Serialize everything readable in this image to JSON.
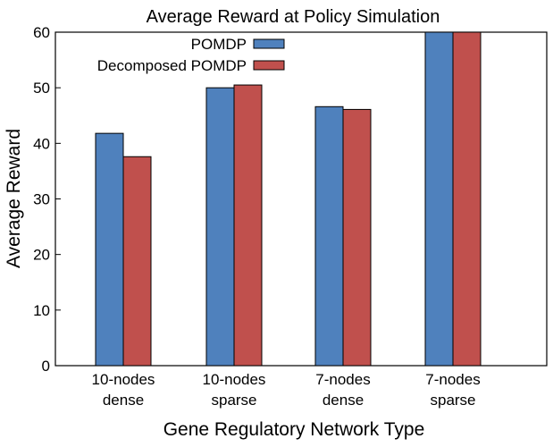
{
  "chart_data": {
    "type": "bar",
    "title": "Average Reward at Policy Simulation",
    "xlabel": "Gene Regulatory Network Type",
    "ylabel": "Average Reward",
    "categories": [
      [
        "10-nodes",
        "dense"
      ],
      [
        "10-nodes",
        "sparse"
      ],
      [
        "7-nodes",
        "dense"
      ],
      [
        "7-nodes",
        "sparse"
      ]
    ],
    "series": [
      {
        "name": "POMDP",
        "color": "#4f81bd",
        "values": [
          41.8,
          50.0,
          46.6,
          60.0
        ]
      },
      {
        "name": "Decomposed POMDP",
        "color": "#c0504d",
        "values": [
          37.6,
          50.5,
          46.1,
          60.0
        ]
      }
    ],
    "ylim": [
      0,
      60
    ],
    "yticks": [
      0,
      10,
      20,
      30,
      40,
      50,
      60
    ],
    "grid": false,
    "legend": "top-center"
  }
}
